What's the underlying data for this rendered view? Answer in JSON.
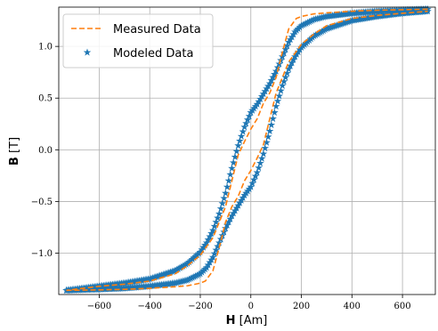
{
  "chart_data": {
    "type": "line",
    "xlabel_bold": "H",
    "xlabel_unit": "[Am]",
    "ylabel_bold": "B",
    "ylabel_unit": "[T]",
    "xlim": [
      -760,
      730
    ],
    "ylim": [
      -1.4,
      1.38
    ],
    "xticks": [
      -600,
      -400,
      -200,
      0,
      200,
      400,
      600
    ],
    "xtick_labels": [
      "−600",
      "−400",
      "−200",
      "0",
      "200",
      "400",
      "600"
    ],
    "yticks": [
      -1.0,
      -0.5,
      0.0,
      0.5,
      1.0
    ],
    "ytick_labels": [
      "−1.0",
      "−0.5",
      "0.0",
      "0.5",
      "1.0"
    ],
    "grid": true,
    "legend_position": "top-left",
    "series": [
      {
        "name": "Measured Data",
        "style": "dashed",
        "color": "#ff7f0e",
        "ascending": {
          "x": [
            -730,
            -600,
            -500,
            -400,
            -300,
            -250,
            -200,
            -180,
            -150,
            -120,
            -100,
            -75,
            -50,
            -25,
            0,
            25,
            50,
            75,
            100,
            125,
            150,
            200,
            250,
            300,
            400,
            500,
            600,
            700
          ],
          "y": [
            -1.36,
            -1.355,
            -1.35,
            -1.34,
            -1.325,
            -1.315,
            -1.29,
            -1.27,
            -1.17,
            -0.9,
            -0.7,
            -0.55,
            -0.45,
            -0.3,
            -0.2,
            -0.08,
            0.05,
            0.3,
            0.55,
            0.7,
            0.85,
            1.02,
            1.12,
            1.2,
            1.27,
            1.3,
            1.32,
            1.34
          ]
        },
        "descending": {
          "x": [
            700,
            600,
            500,
            400,
            300,
            250,
            200,
            180,
            150,
            120,
            100,
            75,
            50,
            25,
            0,
            -25,
            -50,
            -75,
            -100,
            -125,
            -150,
            -200,
            -250,
            -300,
            -400,
            -500,
            -600,
            -730
          ],
          "y": [
            1.36,
            1.355,
            1.35,
            1.34,
            1.325,
            1.315,
            1.29,
            1.27,
            1.17,
            0.9,
            0.7,
            0.55,
            0.45,
            0.3,
            0.2,
            0.08,
            -0.05,
            -0.3,
            -0.55,
            -0.7,
            -0.85,
            -1.02,
            -1.12,
            -1.2,
            -1.27,
            -1.3,
            -1.32,
            -1.36
          ]
        }
      },
      {
        "name": "Modeled Data",
        "style": "star-markers",
        "color": "#1f77b4",
        "ascending": {
          "x": [
            -730,
            -600,
            -500,
            -400,
            -300,
            -250,
            -200,
            -175,
            -150,
            -125,
            -100,
            -75,
            -50,
            -25,
            0,
            25,
            50,
            75,
            100,
            125,
            150,
            175,
            200,
            250,
            300,
            400,
            500,
            600,
            700
          ],
          "y": [
            -1.36,
            -1.35,
            -1.34,
            -1.32,
            -1.29,
            -1.26,
            -1.2,
            -1.14,
            -1.04,
            -0.9,
            -0.76,
            -0.64,
            -0.54,
            -0.44,
            -0.36,
            -0.22,
            -0.04,
            0.18,
            0.42,
            0.62,
            0.78,
            0.9,
            0.99,
            1.1,
            1.17,
            1.25,
            1.29,
            1.32,
            1.34
          ]
        },
        "descending": {
          "x": [
            700,
            600,
            500,
            400,
            300,
            250,
            200,
            175,
            150,
            125,
            100,
            75,
            50,
            25,
            0,
            -25,
            -50,
            -75,
            -100,
            -125,
            -150,
            -175,
            -200,
            -250,
            -300,
            -400,
            -500,
            -600,
            -730
          ],
          "y": [
            1.36,
            1.35,
            1.34,
            1.32,
            1.29,
            1.26,
            1.2,
            1.14,
            1.04,
            0.9,
            0.76,
            0.64,
            0.54,
            0.44,
            0.36,
            0.22,
            0.04,
            -0.18,
            -0.42,
            -0.62,
            -0.78,
            -0.9,
            -0.99,
            -1.1,
            -1.17,
            -1.25,
            -1.29,
            -1.32,
            -1.36
          ]
        }
      }
    ]
  }
}
